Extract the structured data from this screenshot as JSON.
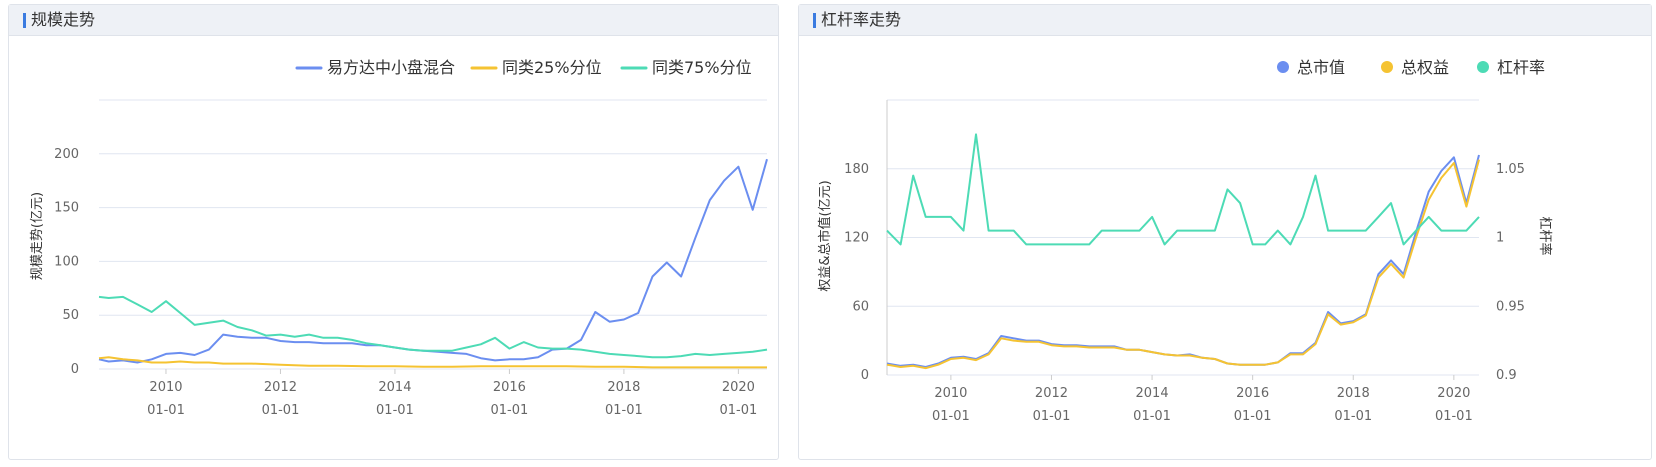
{
  "colors": {
    "blue": "#6b8ef0",
    "yellow": "#f5c332",
    "teal": "#4ddbb5",
    "grid": "#e0e6f1",
    "axis": "#666666"
  },
  "panels": {
    "scale": {
      "title": "规模走势"
    },
    "leverage": {
      "title": "杠杆率走势"
    }
  },
  "chart_data": [
    {
      "type": "line",
      "title": "",
      "ylabel": "规模走势(亿元)",
      "xlabel": "",
      "ylim": [
        0,
        250
      ],
      "yticks": [
        0,
        50,
        100,
        150,
        200
      ],
      "xlim": [
        2008.83,
        2020.5
      ],
      "xticks": [
        {
          "x": 2010,
          "label": [
            "2010",
            "01-01"
          ]
        },
        {
          "x": 2012,
          "label": [
            "2012",
            "01-01"
          ]
        },
        {
          "x": 2014,
          "label": [
            "2014",
            "01-01"
          ]
        },
        {
          "x": 2016,
          "label": [
            "2016",
            "01-01"
          ]
        },
        {
          "x": 2018,
          "label": [
            "2018",
            "01-01"
          ]
        },
        {
          "x": 2020,
          "label": [
            "2020",
            "01-01"
          ]
        }
      ],
      "legend_position": "top-right",
      "series": [
        {
          "name": "易方达中小盘混合",
          "color": "blue",
          "x": [
            2008.83,
            2009.0,
            2009.25,
            2009.5,
            2009.75,
            2010.0,
            2010.25,
            2010.5,
            2010.75,
            2011.0,
            2011.25,
            2011.5,
            2011.75,
            2012.0,
            2012.25,
            2012.5,
            2012.75,
            2013.0,
            2013.25,
            2013.5,
            2013.75,
            2014.0,
            2014.25,
            2014.5,
            2014.75,
            2015.0,
            2015.25,
            2015.5,
            2015.75,
            2016.0,
            2016.25,
            2016.5,
            2016.75,
            2017.0,
            2017.25,
            2017.5,
            2017.75,
            2018.0,
            2018.25,
            2018.5,
            2018.75,
            2019.0,
            2019.25,
            2019.5,
            2019.75,
            2020.0,
            2020.25,
            2020.5
          ],
          "y": [
            9,
            7,
            8,
            6,
            9,
            14,
            15,
            13,
            18,
            32,
            30,
            29,
            29,
            26,
            25,
            25,
            24,
            24,
            24,
            22,
            22,
            20,
            18,
            17,
            16,
            15,
            14,
            10,
            8,
            9,
            9,
            11,
            18,
            19,
            27,
            53,
            44,
            46,
            52,
            86,
            99,
            86,
            122,
            157,
            175,
            188,
            148,
            195
          ]
        },
        {
          "name": "同类25%分位",
          "color": "yellow",
          "x": [
            2008.83,
            2009.0,
            2009.25,
            2009.5,
            2009.75,
            2010.0,
            2010.25,
            2010.5,
            2010.75,
            2011.0,
            2011.5,
            2012.0,
            2012.5,
            2013.0,
            2013.5,
            2014.0,
            2014.5,
            2015.0,
            2015.5,
            2016.0,
            2016.5,
            2017.0,
            2017.5,
            2018.0,
            2018.5,
            2019.0,
            2019.5,
            2020.0,
            2020.5
          ],
          "y": [
            10,
            11,
            9,
            8,
            6,
            6,
            7,
            6,
            6,
            5,
            5,
            4,
            3,
            3,
            2.5,
            2.5,
            2,
            2,
            2.5,
            2.5,
            2.5,
            2.5,
            2,
            2,
            1.5,
            1.5,
            1.5,
            1.5,
            1.5
          ]
        },
        {
          "name": "同类75%分位",
          "color": "teal",
          "x": [
            2008.83,
            2009.0,
            2009.25,
            2009.5,
            2009.75,
            2010.0,
            2010.25,
            2010.5,
            2010.75,
            2011.0,
            2011.25,
            2011.5,
            2011.75,
            2012.0,
            2012.25,
            2012.5,
            2012.75,
            2013.0,
            2013.25,
            2013.5,
            2013.75,
            2014.0,
            2014.25,
            2014.5,
            2014.75,
            2015.0,
            2015.25,
            2015.5,
            2015.75,
            2016.0,
            2016.25,
            2016.5,
            2016.75,
            2017.0,
            2017.25,
            2017.5,
            2017.75,
            2018.0,
            2018.25,
            2018.5,
            2018.75,
            2019.0,
            2019.25,
            2019.5,
            2019.75,
            2020.0,
            2020.25,
            2020.5
          ],
          "y": [
            67,
            66,
            67,
            60,
            53,
            63,
            52,
            41,
            43,
            45,
            39,
            36,
            31,
            32,
            30,
            32,
            29,
            29,
            27,
            24,
            22,
            20,
            18,
            17,
            17,
            17,
            20,
            23,
            29,
            19,
            25,
            20,
            19,
            19,
            18,
            16,
            14,
            13,
            12,
            11,
            11,
            12,
            14,
            13,
            14,
            15,
            16,
            18
          ]
        }
      ]
    },
    {
      "type": "line",
      "title": "",
      "ylabel": "权益&总市值(亿元)",
      "y2label": "杠杆率",
      "xlabel": "",
      "ylim": [
        0,
        240
      ],
      "yticks": [
        0,
        60,
        120,
        180
      ],
      "y2lim": [
        0.9,
        1.1
      ],
      "y2ticks": [
        {
          "v": 0.9,
          "label": "0.9"
        },
        {
          "v": 0.95,
          "label": "0.95"
        },
        {
          "v": 1.0,
          "label": "1"
        },
        {
          "v": 1.05,
          "label": "1.05"
        }
      ],
      "xlim": [
        2008.73,
        2020.5
      ],
      "xticks": [
        {
          "x": 2010,
          "label": [
            "2010",
            "01-01"
          ]
        },
        {
          "x": 2012,
          "label": [
            "2012",
            "01-01"
          ]
        },
        {
          "x": 2014,
          "label": [
            "2014",
            "01-01"
          ]
        },
        {
          "x": 2016,
          "label": [
            "2016",
            "01-01"
          ]
        },
        {
          "x": 2018,
          "label": [
            "2018",
            "01-01"
          ]
        },
        {
          "x": 2020,
          "label": [
            "2020",
            "01-01"
          ]
        }
      ],
      "legend_position": "top-right",
      "series": [
        {
          "name": "总市值",
          "color": "blue",
          "axis": "left",
          "x": [
            2008.73,
            2009.0,
            2009.25,
            2009.5,
            2009.75,
            2010.0,
            2010.25,
            2010.5,
            2010.75,
            2011.0,
            2011.25,
            2011.5,
            2011.75,
            2012.0,
            2012.25,
            2012.5,
            2012.75,
            2013.0,
            2013.25,
            2013.5,
            2013.75,
            2014.0,
            2014.25,
            2014.5,
            2014.75,
            2015.0,
            2015.25,
            2015.5,
            2015.75,
            2016.0,
            2016.25,
            2016.5,
            2016.75,
            2017.0,
            2017.25,
            2017.5,
            2017.75,
            2018.0,
            2018.25,
            2018.5,
            2018.75,
            2019.0,
            2019.25,
            2019.5,
            2019.75,
            2020.0,
            2020.25,
            2020.5
          ],
          "y": [
            10,
            8,
            9,
            7,
            10,
            15,
            16,
            14,
            19,
            34,
            32,
            30,
            30,
            27,
            26,
            26,
            25,
            25,
            25,
            22,
            22,
            20,
            18,
            17,
            18,
            15,
            14,
            10,
            9,
            9,
            9,
            11,
            19,
            19,
            28,
            55,
            45,
            47,
            53,
            88,
            100,
            88,
            125,
            160,
            178,
            190,
            150,
            192
          ]
        },
        {
          "name": "总权益",
          "color": "yellow",
          "axis": "left",
          "x": [
            2008.73,
            2009.0,
            2009.25,
            2009.5,
            2009.75,
            2010.0,
            2010.25,
            2010.5,
            2010.75,
            2011.0,
            2011.25,
            2011.5,
            2011.75,
            2012.0,
            2012.25,
            2012.5,
            2012.75,
            2013.0,
            2013.25,
            2013.5,
            2013.75,
            2014.0,
            2014.25,
            2014.5,
            2014.75,
            2015.0,
            2015.25,
            2015.5,
            2015.75,
            2016.0,
            2016.25,
            2016.5,
            2016.75,
            2017.0,
            2017.25,
            2017.5,
            2017.75,
            2018.0,
            2018.25,
            2018.5,
            2018.75,
            2019.0,
            2019.25,
            2019.5,
            2019.75,
            2020.0,
            2020.25,
            2020.5
          ],
          "y": [
            9,
            7,
            8,
            6,
            9,
            14,
            15,
            13,
            18,
            32,
            30,
            29,
            29,
            26,
            25,
            25,
            24,
            24,
            24,
            22,
            22,
            20,
            18,
            17,
            17,
            15,
            14,
            10,
            9,
            9,
            9,
            11,
            18,
            18,
            27,
            53,
            44,
            46,
            52,
            85,
            97,
            85,
            120,
            153,
            172,
            185,
            147,
            188
          ]
        },
        {
          "name": "杠杆率",
          "color": "teal",
          "axis": "right",
          "x": [
            2008.73,
            2009.0,
            2009.25,
            2009.5,
            2009.75,
            2010.0,
            2010.25,
            2010.5,
            2010.75,
            2011.0,
            2011.25,
            2011.5,
            2011.75,
            2012.0,
            2012.25,
            2012.5,
            2012.75,
            2013.0,
            2013.25,
            2013.5,
            2013.75,
            2014.0,
            2014.25,
            2014.5,
            2014.75,
            2015.0,
            2015.25,
            2015.5,
            2015.75,
            2016.0,
            2016.25,
            2016.5,
            2016.75,
            2017.0,
            2017.25,
            2017.5,
            2017.75,
            2018.0,
            2018.25,
            2018.5,
            2018.75,
            2019.0,
            2019.25,
            2019.5,
            2019.75,
            2020.0,
            2020.25,
            2020.5
          ],
          "y": [
            1.005,
            0.995,
            1.045,
            1.015,
            1.015,
            1.015,
            1.005,
            1.075,
            1.005,
            1.005,
            1.005,
            0.995,
            0.995,
            0.995,
            0.995,
            0.995,
            0.995,
            1.005,
            1.005,
            1.005,
            1.005,
            1.015,
            0.995,
            1.005,
            1.005,
            1.005,
            1.005,
            1.035,
            1.025,
            0.995,
            0.995,
            1.005,
            0.995,
            1.015,
            1.045,
            1.005,
            1.005,
            1.005,
            1.005,
            1.015,
            1.025,
            0.995,
            1.005,
            1.015,
            1.005,
            1.005,
            1.005,
            1.015
          ]
        }
      ]
    }
  ]
}
